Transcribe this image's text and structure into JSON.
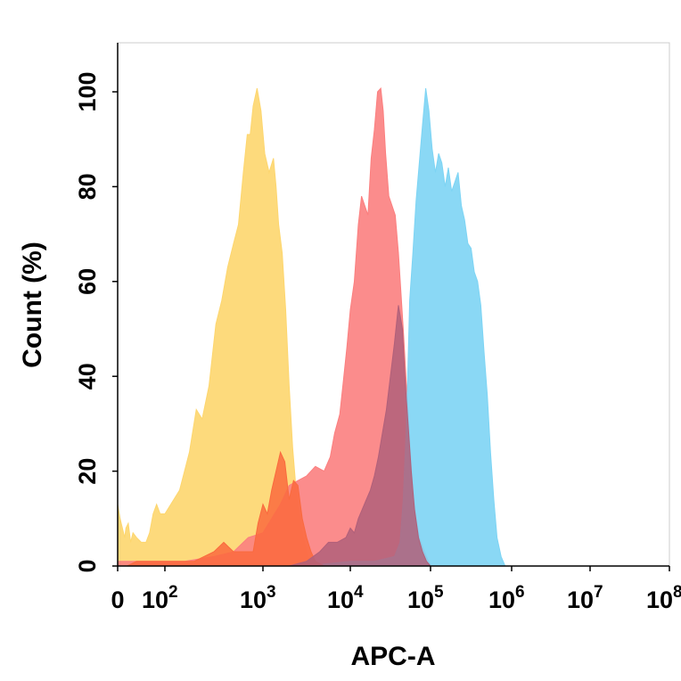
{
  "chart_data": {
    "type": "area",
    "title": "",
    "xlabel": "APC-A",
    "ylabel": "Count  (%)",
    "x_scale": "log",
    "ylim": [
      0,
      100
    ],
    "y_ticks": [
      "0",
      "20",
      "40",
      "60",
      "80",
      "100"
    ],
    "x_ticks": [
      {
        "value": 0,
        "base": "0",
        "exp": ""
      },
      {
        "value": 100,
        "base": "10",
        "exp": "2"
      },
      {
        "value": 1000,
        "base": "10",
        "exp": "3"
      },
      {
        "value": 10000,
        "base": "10",
        "exp": "4"
      },
      {
        "value": 100000,
        "base": "10",
        "exp": "5"
      },
      {
        "value": 1000000,
        "base": "10",
        "exp": "6"
      },
      {
        "value": 10000000,
        "base": "10",
        "exp": "7"
      },
      {
        "value": 100000000,
        "base": "10",
        "exp": "8"
      }
    ],
    "grid": false,
    "legend": "none",
    "series": [
      {
        "color": "#fdd66e",
        "points": [
          [
            0.0,
            13
          ],
          [
            0.1,
            10
          ],
          [
            0.2,
            8
          ],
          [
            0.3,
            6
          ],
          [
            0.35,
            8
          ],
          [
            0.45,
            9
          ],
          [
            0.55,
            5
          ],
          [
            0.65,
            7
          ],
          [
            0.8,
            6
          ],
          [
            1.0,
            5
          ],
          [
            1.2,
            5
          ],
          [
            1.35,
            7
          ],
          [
            1.5,
            11
          ],
          [
            1.65,
            13
          ],
          [
            1.8,
            11
          ],
          [
            2.0,
            11
          ],
          [
            2.15,
            16
          ],
          [
            2.25,
            24
          ],
          [
            2.32,
            33
          ],
          [
            2.38,
            31
          ],
          [
            2.45,
            38
          ],
          [
            2.52,
            51
          ],
          [
            2.58,
            56
          ],
          [
            2.64,
            63
          ],
          [
            2.7,
            68
          ],
          [
            2.75,
            72
          ],
          [
            2.8,
            83
          ],
          [
            2.84,
            91
          ],
          [
            2.87,
            91
          ],
          [
            2.9,
            97
          ],
          [
            2.94,
            101
          ],
          [
            2.98,
            96
          ],
          [
            3.02,
            87
          ],
          [
            3.07,
            83
          ],
          [
            3.12,
            86
          ],
          [
            3.15,
            80
          ],
          [
            3.18,
            72
          ],
          [
            3.22,
            66
          ],
          [
            3.26,
            54
          ],
          [
            3.3,
            38
          ],
          [
            3.34,
            25
          ],
          [
            3.38,
            16
          ],
          [
            3.42,
            10
          ],
          [
            3.46,
            6
          ],
          [
            3.5,
            3
          ],
          [
            3.55,
            0
          ]
        ]
      },
      {
        "color": "#fb7f7f",
        "points": [
          [
            0.0,
            1
          ],
          [
            0.5,
            1
          ],
          [
            1.0,
            1
          ],
          [
            1.5,
            1
          ],
          [
            2.0,
            1
          ],
          [
            2.2,
            1
          ],
          [
            2.5,
            2
          ],
          [
            2.7,
            3
          ],
          [
            2.85,
            6
          ],
          [
            3.0,
            7
          ],
          [
            3.1,
            10
          ],
          [
            3.2,
            13
          ],
          [
            3.3,
            17
          ],
          [
            3.4,
            18
          ],
          [
            3.5,
            19
          ],
          [
            3.6,
            21
          ],
          [
            3.7,
            20
          ],
          [
            3.77,
            23
          ],
          [
            3.82,
            28
          ],
          [
            3.88,
            32
          ],
          [
            3.92,
            39
          ],
          [
            3.96,
            46
          ],
          [
            4.0,
            54
          ],
          [
            4.05,
            60
          ],
          [
            4.1,
            72
          ],
          [
            4.14,
            78
          ],
          [
            4.18,
            76
          ],
          [
            4.22,
            74
          ],
          [
            4.26,
            86
          ],
          [
            4.3,
            92
          ],
          [
            4.34,
            100
          ],
          [
            4.38,
            101
          ],
          [
            4.41,
            96
          ],
          [
            4.44,
            87
          ],
          [
            4.48,
            78
          ],
          [
            4.52,
            76
          ],
          [
            4.56,
            74
          ],
          [
            4.6,
            66
          ],
          [
            4.63,
            58
          ],
          [
            4.66,
            50
          ],
          [
            4.7,
            38
          ],
          [
            4.74,
            26
          ],
          [
            4.78,
            16
          ],
          [
            4.82,
            10
          ],
          [
            4.86,
            6
          ],
          [
            4.9,
            4
          ],
          [
            4.95,
            2
          ],
          [
            5.0,
            0
          ]
        ]
      },
      {
        "color": "#7dd4f4",
        "points": [
          [
            3.5,
            0
          ],
          [
            4.0,
            1
          ],
          [
            4.3,
            1
          ],
          [
            4.55,
            2
          ],
          [
            4.62,
            5
          ],
          [
            4.66,
            14
          ],
          [
            4.7,
            30
          ],
          [
            4.74,
            56
          ],
          [
            4.78,
            66
          ],
          [
            4.82,
            77
          ],
          [
            4.86,
            85
          ],
          [
            4.9,
            93
          ],
          [
            4.94,
            101
          ],
          [
            4.98,
            96
          ],
          [
            5.02,
            88
          ],
          [
            5.06,
            83
          ],
          [
            5.1,
            87
          ],
          [
            5.14,
            85
          ],
          [
            5.18,
            80
          ],
          [
            5.22,
            84
          ],
          [
            5.26,
            79
          ],
          [
            5.3,
            81
          ],
          [
            5.34,
            83
          ],
          [
            5.38,
            76
          ],
          [
            5.42,
            73
          ],
          [
            5.46,
            68
          ],
          [
            5.5,
            67
          ],
          [
            5.54,
            62
          ],
          [
            5.58,
            60
          ],
          [
            5.62,
            55
          ],
          [
            5.66,
            45
          ],
          [
            5.7,
            36
          ],
          [
            5.74,
            24
          ],
          [
            5.78,
            14
          ],
          [
            5.82,
            6
          ],
          [
            5.87,
            2
          ],
          [
            5.92,
            0
          ]
        ]
      },
      {
        "color": "#fa6a3e",
        "points": [
          [
            0.0,
            0
          ],
          [
            0.4,
            0
          ],
          [
            0.8,
            1
          ],
          [
            1.2,
            1
          ],
          [
            1.6,
            1
          ],
          [
            2.0,
            1
          ],
          [
            2.3,
            1
          ],
          [
            2.5,
            3
          ],
          [
            2.6,
            5
          ],
          [
            2.7,
            3
          ],
          [
            2.8,
            3
          ],
          [
            2.9,
            3
          ],
          [
            2.95,
            9
          ],
          [
            3.0,
            13
          ],
          [
            3.05,
            11
          ],
          [
            3.1,
            16
          ],
          [
            3.15,
            20
          ],
          [
            3.2,
            24
          ],
          [
            3.25,
            22
          ],
          [
            3.3,
            14
          ],
          [
            3.35,
            18
          ],
          [
            3.4,
            17
          ],
          [
            3.45,
            10
          ],
          [
            3.5,
            6
          ],
          [
            3.55,
            3
          ],
          [
            3.6,
            1
          ],
          [
            3.7,
            0
          ]
        ]
      },
      {
        "color": "#b0607a",
        "points": [
          [
            3.3,
            0
          ],
          [
            3.5,
            1
          ],
          [
            3.65,
            3
          ],
          [
            3.75,
            5
          ],
          [
            3.85,
            5
          ],
          [
            3.95,
            6
          ],
          [
            4.0,
            8
          ],
          [
            4.05,
            7
          ],
          [
            4.1,
            10
          ],
          [
            4.15,
            12
          ],
          [
            4.2,
            14
          ],
          [
            4.25,
            16
          ],
          [
            4.3,
            19
          ],
          [
            4.35,
            23
          ],
          [
            4.4,
            28
          ],
          [
            4.45,
            33
          ],
          [
            4.5,
            40
          ],
          [
            4.55,
            47
          ],
          [
            4.6,
            55
          ],
          [
            4.65,
            50
          ],
          [
            4.68,
            40
          ],
          [
            4.72,
            30
          ],
          [
            4.76,
            20
          ],
          [
            4.8,
            12
          ],
          [
            4.85,
            6
          ],
          [
            4.9,
            3
          ],
          [
            4.95,
            1
          ],
          [
            5.0,
            0
          ]
        ]
      }
    ]
  }
}
